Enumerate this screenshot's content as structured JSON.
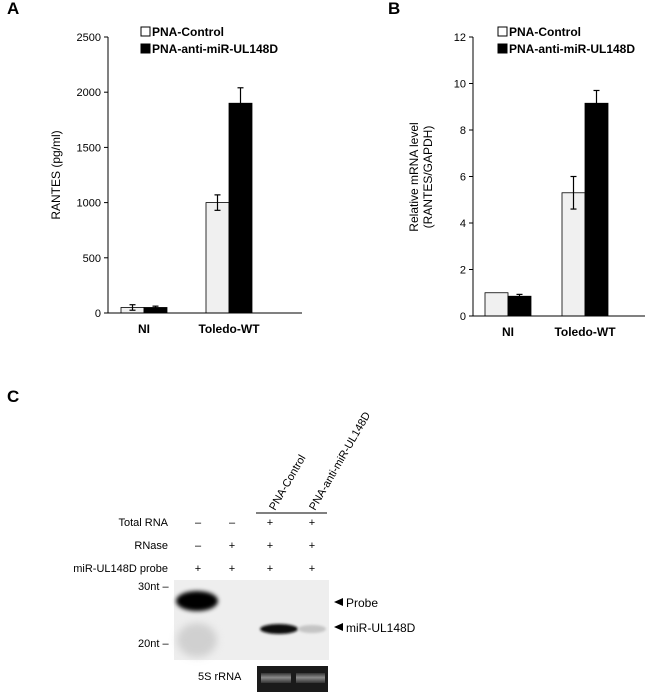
{
  "panels": {
    "a": "A",
    "b": "B",
    "c": "C"
  },
  "colors": {
    "control": "#f0f0f0",
    "anti": "#000000",
    "axis": "#000000",
    "gel_background": "#eeeeee",
    "gel_inset": "#1a1a1a"
  },
  "chart_data": [
    {
      "panel": "A",
      "type": "bar",
      "categories": [
        "NI",
        "Toledo-WT"
      ],
      "series": [
        {
          "name": "PNA-Control",
          "values": [
            50,
            1000
          ],
          "errors": [
            25,
            70
          ]
        },
        {
          "name": "PNA-anti-miR-UL148D",
          "values": [
            50,
            1900
          ],
          "errors": [
            12,
            140
          ]
        }
      ],
      "ylabel": "RANTES (pg/ml)",
      "ylim": [
        0,
        2500
      ],
      "yticks": [
        0,
        500,
        1000,
        1500,
        2000,
        2500
      ],
      "grid": false,
      "legend_position": "top-left"
    },
    {
      "panel": "B",
      "type": "bar",
      "categories": [
        "NI",
        "Toledo-WT"
      ],
      "series": [
        {
          "name": "PNA-Control",
          "values": [
            1.0,
            5.3
          ],
          "errors": [
            0,
            0.7
          ]
        },
        {
          "name": "PNA-anti-miR-UL148D",
          "values": [
            0.85,
            9.15
          ],
          "errors": [
            0.08,
            0.55
          ]
        }
      ],
      "ylabel": [
        "Relative mRNA level",
        "(RANTES/GAPDH)"
      ],
      "ylim": [
        0,
        12
      ],
      "yticks": [
        0,
        2,
        4,
        6,
        8,
        10,
        12
      ],
      "grid": false,
      "legend_position": "top-left"
    }
  ],
  "gel": {
    "lane_headers": [
      "PNA-Control",
      "PNA-anti-miR-UL148D"
    ],
    "rows": [
      {
        "label": "Total RNA",
        "marks": [
          "–",
          "–",
          "+",
          "+"
        ]
      },
      {
        "label": "RNase",
        "marks": [
          "–",
          "+",
          "+",
          "+"
        ]
      },
      {
        "label": "miR-UL148D probe",
        "marks": [
          "+",
          "+",
          "+",
          "+"
        ]
      }
    ],
    "size_markers": [
      "30nt –",
      "20nt –"
    ],
    "band_labels": [
      "Probe",
      "miR-UL148D"
    ],
    "inset_label": "5S rRNA"
  }
}
